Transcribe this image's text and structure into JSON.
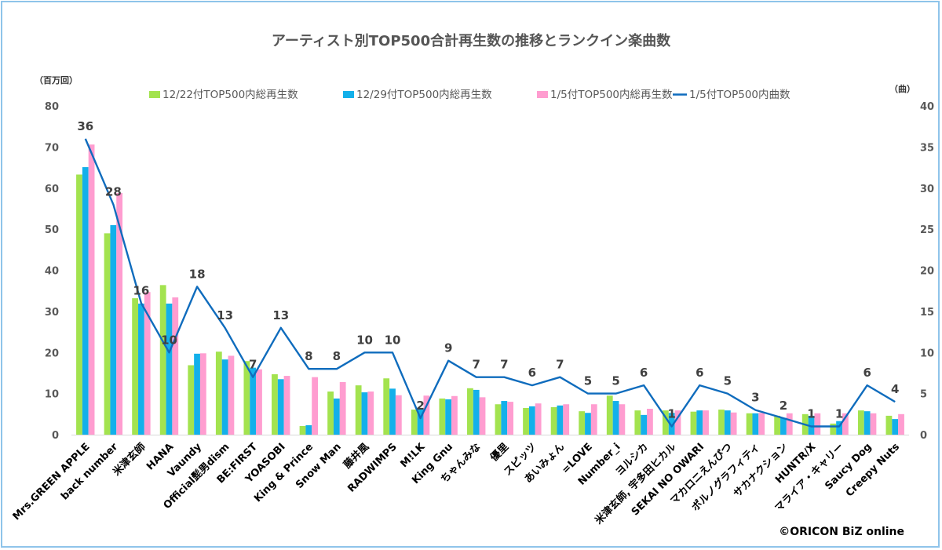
{
  "chart_data": {
    "type": "bar",
    "title": "アーティスト別TOP500合計再生数の推移とランクイン楽曲数",
    "ylabel_left": "（百万回）",
    "ylabel_right": "（曲）",
    "ylim_left": [
      0,
      80
    ],
    "ylim_right": [
      0,
      40
    ],
    "yticks_left": [
      "0",
      "10",
      "20",
      "30",
      "40",
      "50",
      "60",
      "70",
      "80"
    ],
    "yticks_right": [
      "0",
      "5",
      "10",
      "15",
      "20",
      "25",
      "30",
      "35",
      "40"
    ],
    "legend_position": "top",
    "grid": false,
    "categories": [
      "Mrs.GREEN APPLE",
      "back number",
      "米津玄師",
      "HANA",
      "Vaundy",
      "Official髭男dism",
      "BE:FIRST",
      "YOASOBI",
      "King & Prince",
      "Snow Man",
      "藤井風",
      "RADWIMPS",
      "M!LK",
      "King Gnu",
      "ちゃんみな",
      "優里",
      "スピッツ",
      "あいみょん",
      "=LOVE",
      "Number_i",
      "ヨルシカ",
      "米津玄師, 宇多田ヒカル",
      "SEKAI NO OWARI",
      "マカロニえんぴつ",
      "ポルノグラフィティ",
      "サカナクション",
      "HUNTR/X",
      "マライア・キャリー",
      "Saucy Dog",
      "Creepy Nuts"
    ],
    "series": [
      {
        "name": "12/22付TOP500内総再生数",
        "type": "bar",
        "axis": "left",
        "color": "#a3e34f",
        "values": [
          63.3,
          49.0,
          33.2,
          36.4,
          16.9,
          20.2,
          17.9,
          14.7,
          2.1,
          10.5,
          12.0,
          13.7,
          6.1,
          8.8,
          11.3,
          7.4,
          6.5,
          6.7,
          5.7,
          9.5,
          5.9,
          5.9,
          5.6,
          6.1,
          5.2,
          4.6,
          5.0,
          2.7,
          5.9,
          4.6
        ]
      },
      {
        "name": "12/29付TOP500内総再生数",
        "type": "bar",
        "axis": "left",
        "color": "#13b0ea",
        "values": [
          65.1,
          51.0,
          31.9,
          31.9,
          19.7,
          18.3,
          16.3,
          13.5,
          2.3,
          8.8,
          10.3,
          11.2,
          6.3,
          8.6,
          10.9,
          8.2,
          6.9,
          7.1,
          5.3,
          8.2,
          4.8,
          5.3,
          5.9,
          5.9,
          5.2,
          4.1,
          4.6,
          3.3,
          5.7,
          3.8
        ]
      },
      {
        "name": "1/5付TOP500内総再生数",
        "type": "bar",
        "axis": "left",
        "color": "#ff9dd0",
        "values": [
          70.6,
          58.8,
          34.7,
          33.4,
          19.8,
          19.2,
          15.9,
          14.3,
          14.0,
          12.8,
          10.5,
          9.6,
          9.5,
          9.4,
          9.1,
          8.0,
          7.6,
          7.4,
          7.4,
          7.4,
          6.3,
          5.9,
          5.9,
          5.4,
          5.3,
          5.2,
          5.2,
          5.2,
          5.2,
          5.0
        ]
      },
      {
        "name": "1/5付TOP500内曲数",
        "type": "line",
        "axis": "right",
        "color": "#0f6cbd",
        "values": [
          36,
          28,
          16,
          10,
          18,
          13,
          7,
          13,
          8,
          8,
          10,
          10,
          2,
          9,
          7,
          7,
          6,
          7,
          5,
          5,
          6,
          1,
          6,
          5,
          3,
          2,
          1,
          1,
          6,
          4
        ]
      }
    ]
  },
  "credit": "©ORICON BiZ online"
}
